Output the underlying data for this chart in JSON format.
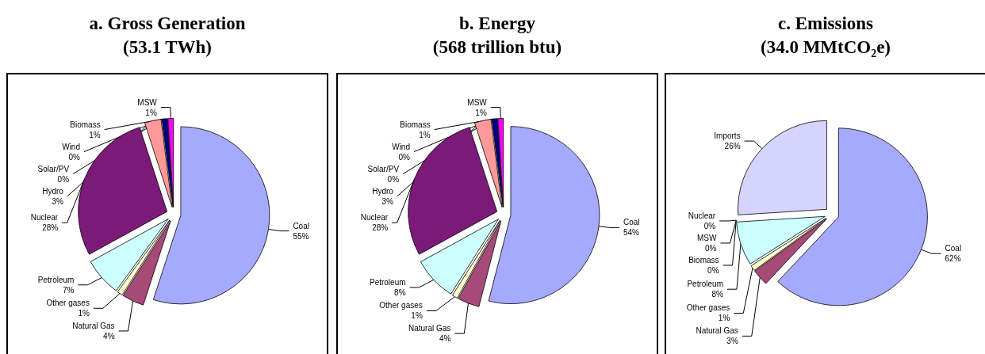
{
  "chart_data": [
    {
      "type": "pie",
      "title": "a. Gross Generation\n(53.1 TWh)",
      "categories": [
        "Coal",
        "Natural Gas",
        "Other gases",
        "Petroleum",
        "Nuclear",
        "Hydro",
        "Wind",
        "Solar/PV",
        "Biomass",
        "MSW"
      ],
      "values": [
        55,
        4,
        1,
        7,
        28,
        3,
        0,
        0,
        1,
        1
      ],
      "value_labels": [
        "55%",
        "4%",
        "1%",
        "7%",
        "28%",
        "3%",
        "0%",
        "0%",
        "1%",
        "1%"
      ],
      "colors": [
        "#a6aaff",
        "#a64a78",
        "#ffffcc",
        "#ccffff",
        "#7b1a78",
        "#ff9999",
        "#ffffff",
        "#c0c0c0",
        "#000080",
        "#ff00ff"
      ]
    },
    {
      "type": "pie",
      "title": "b. Energy\n(568 trillion btu)",
      "categories": [
        "Coal",
        "Natural Gas",
        "Other gases",
        "Petroleum",
        "Nuclear",
        "Hydro",
        "Wind",
        "Solar/PV",
        "Biomass",
        "MSW"
      ],
      "values": [
        54,
        4,
        1,
        8,
        28,
        3,
        0,
        0,
        1,
        1
      ],
      "value_labels": [
        "54%",
        "4%",
        "1%",
        "8%",
        "28%",
        "3%",
        "0%",
        "0%",
        "1%",
        "1%"
      ],
      "colors": [
        "#a6aaff",
        "#a64a78",
        "#ffffcc",
        "#ccffff",
        "#7b1a78",
        "#ff9999",
        "#ffffff",
        "#c0c0c0",
        "#000080",
        "#ff00ff"
      ]
    },
    {
      "type": "pie",
      "title": "c. Emissions\n(34.0 MMtCO₂e)",
      "categories": [
        "Coal",
        "Natural Gas",
        "Other gases",
        "Petroleum",
        "Nuclear",
        "MSW",
        "Biomass",
        "Imports"
      ],
      "values": [
        62,
        3,
        1,
        8,
        0,
        0,
        0,
        26
      ],
      "value_labels": [
        "62%",
        "3%",
        "1%",
        "8%",
        "0%",
        "0%",
        "0%",
        "26%"
      ],
      "colors": [
        "#a6aaff",
        "#a64a78",
        "#ffffcc",
        "#ccffff",
        "#7b1a78",
        "#ff00ff",
        "#000080",
        "#d4d4fc"
      ]
    }
  ]
}
